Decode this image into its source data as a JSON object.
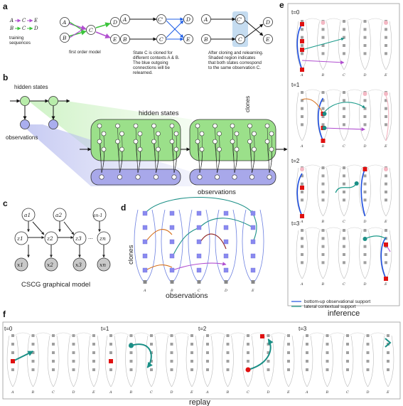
{
  "panels": {
    "a": "a",
    "b": "b",
    "c": "c",
    "d": "d",
    "e": "e",
    "f": "f"
  },
  "a": {
    "training_label_1": "training",
    "training_label_2": "sequences",
    "seq1": [
      "A",
      "C",
      "E"
    ],
    "seq2": [
      "B",
      "C",
      "D"
    ],
    "first_order_caption": "first order model",
    "clone_caption": [
      "State C is cloned for",
      "different contexts A & B.",
      "The blue outgoing",
      "connections will be",
      "relearned."
    ],
    "relearn_caption": [
      "After cloning and relearning.",
      "Shaded region indicates",
      "that both states correspond",
      "to the same observation C."
    ],
    "nodes": [
      "A",
      "B",
      "C",
      "D",
      "E"
    ],
    "clone_node": "C'",
    "colors": {
      "purple": "#b14fd0",
      "green": "#3cc43c",
      "blue": "#1f5fe6",
      "shade": "#c5dcf0"
    }
  },
  "b": {
    "hidden_states_small": "hidden states",
    "observations_small": "observations",
    "hidden_states_big": "hidden states",
    "observations_big": "observations",
    "clones": "clones",
    "colors": {
      "hidden": "#9be08a",
      "obs": "#a8a8ea"
    }
  },
  "c": {
    "top": [
      "a1",
      "a2",
      "an-1"
    ],
    "mid": [
      "z1",
      "z2",
      "z3",
      "zn"
    ],
    "bot": [
      "x1",
      "x2",
      "x3",
      "xn"
    ],
    "ellipsis": "...",
    "caption": "CSCG graphical model"
  },
  "d": {
    "ylabel": "clones",
    "xlabel": "observations",
    "ticks": [
      "A",
      "B",
      "C",
      "D",
      "E"
    ]
  },
  "e": {
    "steps": [
      "t=0",
      "t=1",
      "t=2",
      "t=3"
    ],
    "ticks": [
      "A",
      "B",
      "C",
      "D",
      "E"
    ],
    "legend": [
      {
        "label": "bottom-up observational support",
        "color": "#1f4fe0"
      },
      {
        "label": "lateral contextual support",
        "color": "#1a9a8a"
      }
    ],
    "caption": "inference"
  },
  "f": {
    "steps": [
      "t=0",
      "t=1",
      "t=2",
      "t=3"
    ],
    "ticks": [
      "A",
      "B",
      "C",
      "D",
      "E"
    ],
    "caption": "replay",
    "colors": {
      "teal": "#1a8f86",
      "red": "#e01010"
    }
  }
}
